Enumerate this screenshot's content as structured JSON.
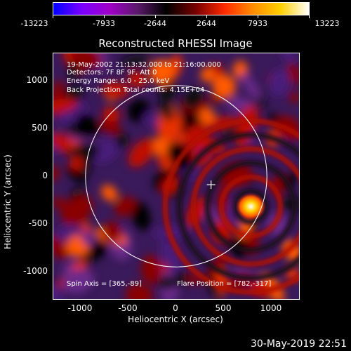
{
  "colorbar": {
    "tick_labels": [
      "-13223",
      "-7933",
      "-2644",
      "2644",
      "7933",
      "13223"
    ],
    "colors": [
      "#0000ff",
      "#7a00ff",
      "#a000c8",
      "#5a1a6a",
      "#000000",
      "#7a0000",
      "#ff2a00",
      "#ff8c00",
      "#ffd000",
      "#ffffff"
    ]
  },
  "title": "Reconstructed RHESSI Image",
  "info_lines": [
    "19-May-2002 21:13:32.000 to 21:16:00.000",
    "Detectors: 7F 8F 9F, Att 0",
    "Energy Range: 6.0 - 25.0 keV",
    "Back Projection     Total counts: 4.15E+04"
  ],
  "spin_axis": "Spin Axis = [365,-89]",
  "flare_position": "Flare Position = [782,-317]",
  "plot": {
    "x_ticks": [
      "-1000",
      "-500",
      "0",
      "500",
      "1000"
    ],
    "y_ticks": [
      "1000",
      "500",
      "0",
      "-500",
      "-1000"
    ],
    "xlabel": "Heliocentric X (arcsec)",
    "ylabel": "Heliocentric Y (arcsec)",
    "sun_circle": {
      "center": [
        0,
        0
      ],
      "radius_arcsec": 950
    },
    "marker_plus": [
      365,
      -89
    ],
    "flare_peak": [
      782,
      -317
    ]
  },
  "timestamp": "30-May-2019 22:51"
}
